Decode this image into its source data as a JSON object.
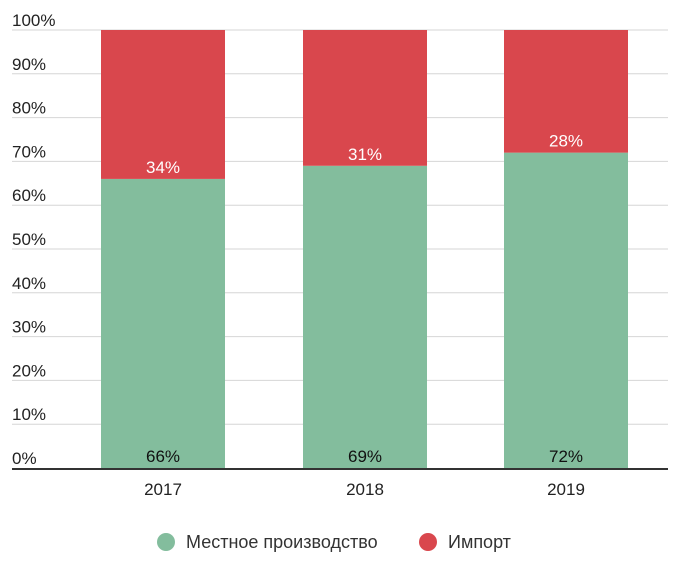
{
  "chart_data": {
    "type": "bar",
    "stacked": true,
    "categories": [
      "2017",
      "2018",
      "2019"
    ],
    "series": [
      {
        "name": "Местное производство",
        "values": [
          66,
          69,
          72
        ],
        "color": "#83bd9d",
        "labels": [
          "66%",
          "69%",
          "72%"
        ],
        "label_color": "#111111"
      },
      {
        "name": "Импорт",
        "values": [
          34,
          31,
          28
        ],
        "color": "#d9474d",
        "labels": [
          "34%",
          "31%",
          "28%"
        ],
        "label_color": "#ffffff"
      }
    ],
    "yticks": [
      "0%",
      "10%",
      "20%",
      "30%",
      "40%",
      "50%",
      "60%",
      "70%",
      "80%",
      "90%",
      "100%"
    ],
    "ylim": [
      0,
      100
    ],
    "grid": true,
    "legend_position": "bottom-center",
    "title": "",
    "xlabel": "",
    "ylabel": ""
  }
}
